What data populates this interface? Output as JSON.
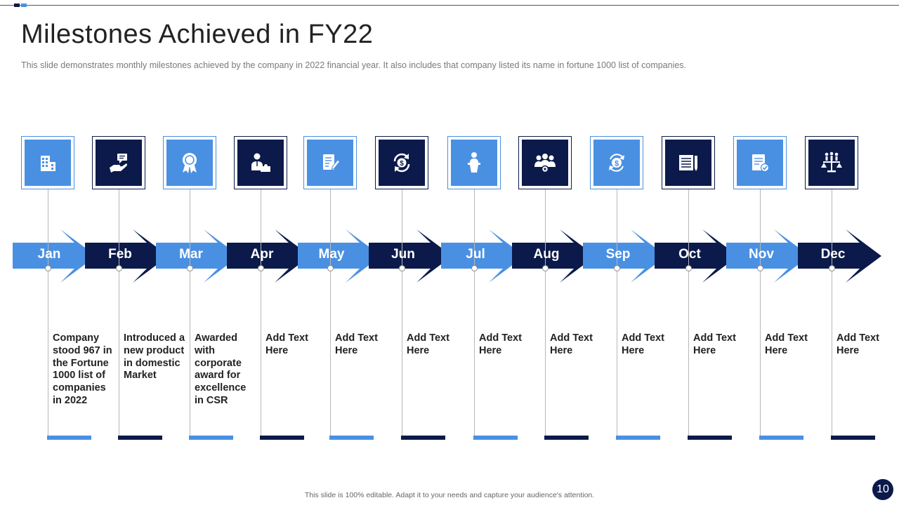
{
  "title": "Milestones Achieved in FY22",
  "subtitle": "This slide demonstrates monthly milestones achieved  by the company in 2022 financial year. It also includes that company listed its name in fortune  1000 list of companies.",
  "footer": "This slide is 100% editable. Adapt it to your needs and capture your audience's attention.",
  "page_number": "10",
  "colors": {
    "light": "#4a90e2",
    "dark": "#0b1a4a"
  },
  "months": [
    {
      "label": "Jan",
      "icon": "building-icon",
      "shade": "light",
      "text": "Company stood 967 in the Fortune 1000 list of companies in 2022"
    },
    {
      "label": "Feb",
      "icon": "hand-message-icon",
      "shade": "dark",
      "text": "Introduced a new product in domestic Market"
    },
    {
      "label": "Mar",
      "icon": "award-badge-icon",
      "shade": "light",
      "text": "Awarded with corporate award for excellence in CSR"
    },
    {
      "label": "Apr",
      "icon": "person-puzzle-icon",
      "shade": "dark",
      "text": "Add Text Here"
    },
    {
      "label": "May",
      "icon": "document-edit-icon",
      "shade": "light",
      "text": "Add Text Here"
    },
    {
      "label": "Jun",
      "icon": "dollar-cycle-icon",
      "shade": "dark",
      "text": "Add Text Here"
    },
    {
      "label": "Jul",
      "icon": "podium-speaker-icon",
      "shade": "light",
      "text": "Add Text Here"
    },
    {
      "label": "Aug",
      "icon": "team-gear-icon",
      "shade": "dark",
      "text": "Add Text Here"
    },
    {
      "label": "Sep",
      "icon": "dollar-exchange-icon",
      "shade": "light",
      "text": "Add Text Here"
    },
    {
      "label": "Oct",
      "icon": "newspaper-icon",
      "shade": "dark",
      "text": "Add Text Here"
    },
    {
      "label": "Nov",
      "icon": "checklist-icon",
      "shade": "light",
      "text": "Add Text Here"
    },
    {
      "label": "Dec",
      "icon": "scales-people-icon",
      "shade": "dark",
      "text": "Add Text Here"
    }
  ]
}
